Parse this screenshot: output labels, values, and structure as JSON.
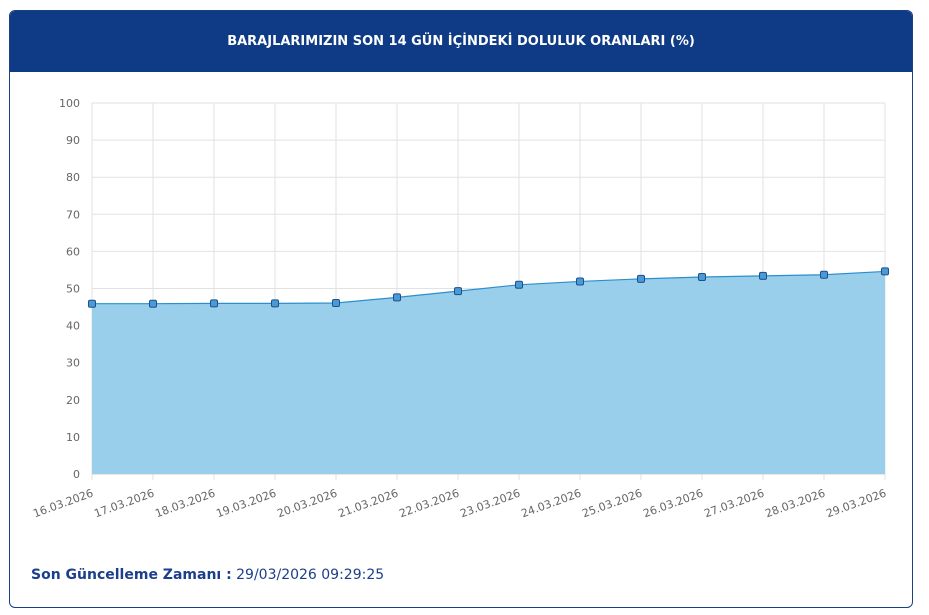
{
  "header": {
    "title": "BARAJLARIMIZIN SON 14 GÜN İÇİNDEKİ DOLULUK ORANLARI (%)"
  },
  "footer": {
    "label": "Son Güncelleme Zamanı :",
    "value": " 29/03/2026 09:29:25"
  },
  "colors": {
    "header_bg": "#0f3a85",
    "area_fill": "#9acfeb",
    "line": "#2a8fcf",
    "marker_fill": "#4a9ad6",
    "marker_stroke": "#1f4f8a",
    "grid": "#e2e2e2",
    "footer_text": "#1b3f8a"
  },
  "chart_data": {
    "type": "area",
    "title": "BARAJLARIMIZIN SON 14 GÜN İÇİNDEKİ DOLULUK ORANLARI (%)",
    "xlabel": "",
    "ylabel": "",
    "ylim": [
      0,
      100
    ],
    "yticks": [
      0,
      10,
      20,
      30,
      40,
      50,
      60,
      70,
      80,
      90,
      100
    ],
    "grid": true,
    "legend": "none",
    "categories": [
      "16.03.2026",
      "17.03.2026",
      "18.03.2026",
      "19.03.2026",
      "20.03.2026",
      "21.03.2026",
      "22.03.2026",
      "23.03.2026",
      "24.03.2026",
      "25.03.2026",
      "26.03.2026",
      "27.03.2026",
      "28.03.2026",
      "29.03.2026"
    ],
    "series": [
      {
        "values": [
          45.9,
          45.9,
          46.0,
          46.0,
          46.1,
          47.6,
          49.3,
          51.0,
          51.9,
          52.6,
          53.1,
          53.4,
          53.7,
          54.6
        ]
      }
    ]
  }
}
